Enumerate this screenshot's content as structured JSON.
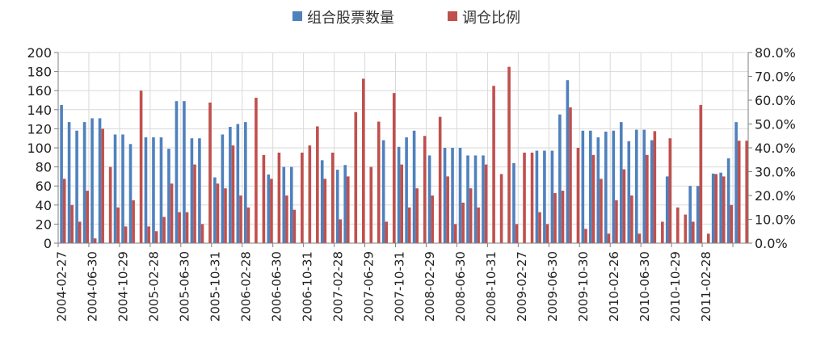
{
  "chart_data": {
    "type": "bar",
    "legend_position": "top-center",
    "series": [
      {
        "name": "组合股票数量",
        "axis": "left",
        "color": "#4F81BD",
        "values": [
          145,
          127,
          118,
          127,
          131,
          131,
          0,
          114,
          114,
          104,
          0,
          111,
          111,
          111,
          99,
          149,
          149,
          110,
          110,
          0,
          69,
          114,
          122,
          125,
          127,
          0,
          0,
          72,
          0,
          80,
          80,
          0,
          0,
          0,
          87,
          0,
          77,
          82,
          0,
          0,
          0,
          0,
          108,
          0,
          101,
          111,
          118,
          0,
          92,
          0,
          100,
          100,
          100,
          92,
          92,
          92,
          0,
          0,
          0,
          84,
          0,
          0,
          97,
          97,
          97,
          135,
          171,
          0,
          118,
          118,
          111,
          117,
          118,
          127,
          107,
          119,
          119,
          108,
          0,
          70,
          0,
          0,
          60,
          60,
          0,
          73,
          74,
          89,
          127,
          0
        ]
      },
      {
        "name": "调仓比例",
        "axis": "right",
        "color": "#C0504D",
        "values": [
          27,
          16,
          9,
          22,
          2,
          48,
          32,
          15,
          7,
          18,
          64,
          7,
          5,
          11,
          25,
          13,
          13,
          33,
          8,
          59,
          25,
          23,
          41,
          20,
          15,
          61,
          37,
          27,
          38,
          20,
          14,
          38,
          41,
          49,
          27,
          38,
          10,
          28,
          55,
          69,
          32,
          51,
          9,
          63,
          33,
          15,
          23,
          45,
          20,
          53,
          28,
          8,
          17,
          23,
          15,
          33,
          66,
          29,
          74,
          8,
          38,
          38,
          13,
          8,
          21,
          22,
          57,
          40,
          6,
          37,
          27,
          4,
          18,
          31,
          20,
          4,
          37,
          47,
          9,
          44,
          15,
          12,
          9,
          58,
          4,
          29,
          28,
          16,
          43,
          43
        ]
      }
    ],
    "x_tick_labels": [
      "2004-02-27",
      "2004-06-30",
      "2004-10-29",
      "2005-02-28",
      "2005-06-30",
      "2005-10-31",
      "2006-02-28",
      "2006-06-30",
      "2006-10-31",
      "2007-02-28",
      "2007-06-29",
      "2007-10-31",
      "2008-02-29",
      "2008-06-30",
      "2008-10-31",
      "2009-02-27",
      "2009-06-30",
      "2009-10-30",
      "2010-02-26",
      "2010-06-30",
      "2010-10-29",
      "2011-02-28"
    ],
    "x_tick_every": 4,
    "y_left": {
      "min": 0,
      "max": 200,
      "step": 20,
      "ticks": [
        "0",
        "20",
        "40",
        "60",
        "80",
        "100",
        "120",
        "140",
        "160",
        "180",
        "200"
      ]
    },
    "y_right": {
      "min": 0,
      "max": 80,
      "step": 10,
      "ticks": [
        "0.0%",
        "10.0%",
        "20.0%",
        "30.0%",
        "40.0%",
        "50.0%",
        "60.0%",
        "70.0%",
        "80.0%"
      ]
    },
    "grid": true
  }
}
